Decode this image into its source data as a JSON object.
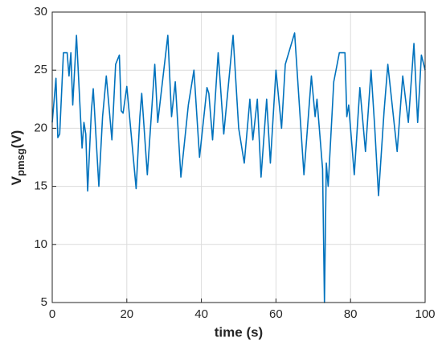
{
  "chart_data": {
    "type": "line",
    "xlabel": "time (s)",
    "ylabel_parts": [
      "V",
      "pmsg",
      "(V)"
    ],
    "xlim": [
      0,
      100
    ],
    "xticks": [
      0,
      20,
      40,
      60,
      80,
      100
    ],
    "ylim": [
      5,
      30
    ],
    "yticks": [
      5,
      10,
      15,
      20,
      25,
      30
    ],
    "grid": true,
    "series": [
      {
        "color": "#0072bd",
        "x": [
          0,
          1,
          1.5,
          2,
          3,
          4,
          4.5,
          5,
          5.5,
          6.5,
          8,
          8.5,
          9,
          9.5,
          10.5,
          11,
          12.5,
          13.5,
          14.5,
          16,
          17,
          18,
          18.5,
          19,
          20,
          22.5,
          23.5,
          24,
          25.5,
          27.5,
          28.3,
          31,
          32,
          33,
          34.5,
          36.5,
          38,
          39.5,
          41.5,
          42,
          43,
          44.5,
          46,
          48.5,
          50,
          51.5,
          53,
          53.8,
          55,
          56,
          57.5,
          58.5,
          60,
          61.5,
          62.5,
          65,
          67.5,
          69.5,
          70.5,
          71,
          72.5,
          73,
          73.5,
          74,
          75.5,
          77,
          78.5,
          79,
          79.5,
          81,
          82.5,
          84,
          85.5,
          86.5,
          87.5,
          89,
          90,
          92.5,
          94,
          95.5,
          97,
          98,
          99,
          100
        ],
        "values": [
          20.5,
          24.3,
          19.2,
          19.5,
          26.5,
          26.5,
          24.5,
          26.5,
          22,
          28,
          18.3,
          20.5,
          19.5,
          14.6,
          21.5,
          23.4,
          15,
          21,
          24.5,
          19,
          25.5,
          26.3,
          21.5,
          21.3,
          23.6,
          14.8,
          21,
          23,
          16,
          25.5,
          20.5,
          28,
          21,
          24,
          15.8,
          22,
          25,
          17.5,
          23.5,
          23,
          19,
          26.5,
          19.5,
          28,
          20,
          17,
          22.5,
          19,
          22.5,
          15.8,
          22.5,
          17,
          25,
          20,
          25.5,
          28.2,
          16,
          24.5,
          21,
          22.5,
          16.5,
          5,
          17,
          15,
          24,
          26.5,
          26.5,
          21,
          22,
          16,
          23.5,
          18,
          25,
          20,
          14.2,
          21.5,
          25.5,
          18,
          24.5,
          20.5,
          27.3,
          20.5,
          26.3,
          25
        ]
      }
    ]
  }
}
